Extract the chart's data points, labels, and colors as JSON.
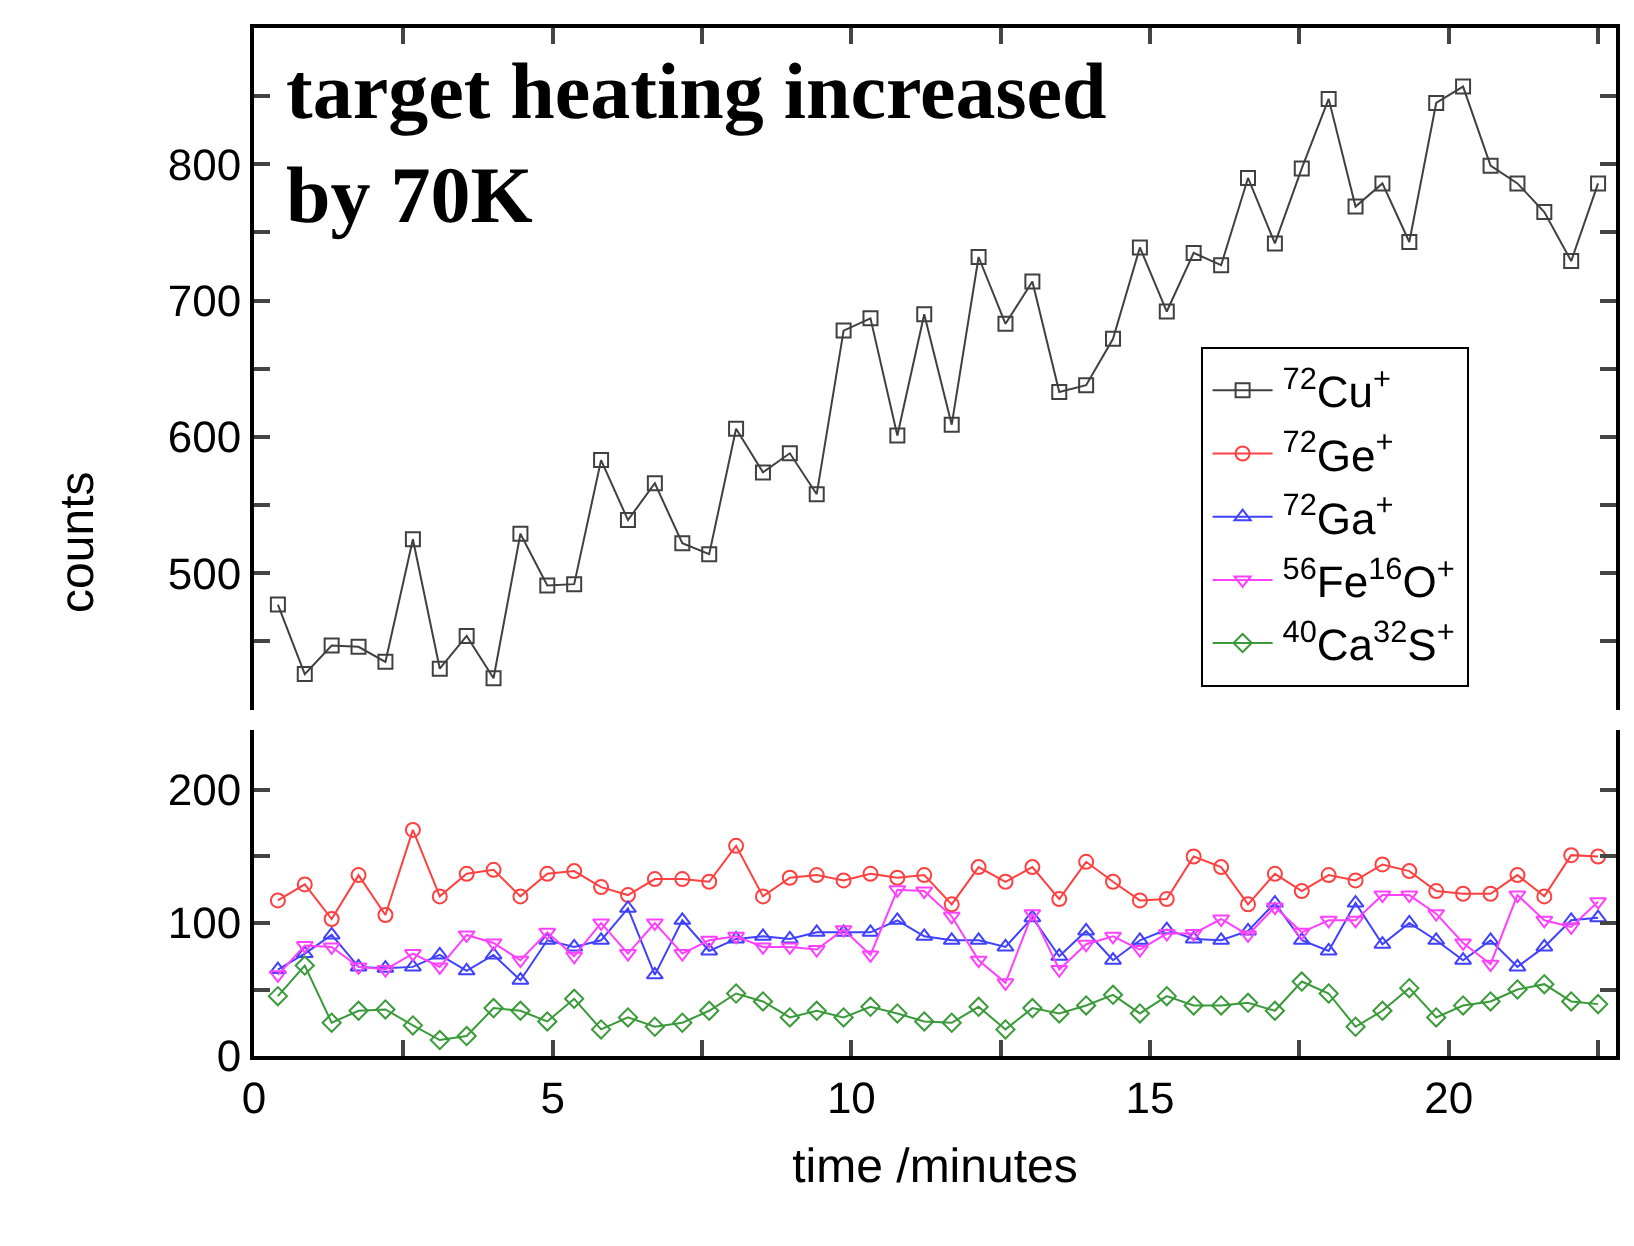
{
  "chart_data": [
    {
      "type": "line",
      "title": "target heating increased\nby 70K",
      "ylabel": "counts",
      "legend": "right",
      "tick_labels": "y",
      "x": [
        0.4,
        0.85,
        1.3,
        1.75,
        2.2,
        2.66,
        3.11,
        3.56,
        4.01,
        4.46,
        4.91,
        5.36,
        5.81,
        6.26,
        6.71,
        7.17,
        7.62,
        8.07,
        8.52,
        8.97,
        9.42,
        9.87,
        10.32,
        10.77,
        11.22,
        11.68,
        12.13,
        12.58,
        13.03,
        13.48,
        13.93,
        14.38,
        14.83,
        15.28,
        15.73,
        16.19,
        16.64,
        17.09,
        17.54,
        17.99,
        18.44,
        18.89,
        19.34,
        19.79,
        20.24,
        20.7,
        21.15,
        21.6,
        22.05,
        22.5
      ],
      "xlim": [
        0,
        22.8
      ],
      "xticks": [
        {
          "value": 0,
          "label": null
        },
        {
          "value": 2.5,
          "label": null
        },
        {
          "value": 5,
          "label": null
        },
        {
          "value": 7.5,
          "label": null
        },
        {
          "value": 10,
          "label": null
        },
        {
          "value": 12.5,
          "label": null
        },
        {
          "value": 15,
          "label": null
        },
        {
          "value": 17.5,
          "label": null
        },
        {
          "value": 20,
          "label": null
        },
        {
          "value": 22.5,
          "label": null
        }
      ],
      "ylim": [
        400,
        900
      ],
      "yticks": [
        {
          "value": 450,
          "label": null
        },
        500,
        {
          "value": 550,
          "label": null
        },
        600,
        {
          "value": 650,
          "label": null
        },
        700,
        {
          "value": 750,
          "label": null
        },
        800,
        {
          "value": 850,
          "label": null
        }
      ],
      "series": [
        {
          "name": "$^{72}$Cu$^{+}$",
          "color": "#404040",
          "marker": "square",
          "values": [
            477,
            426,
            447,
            446,
            435,
            525,
            430,
            454,
            423,
            529,
            491,
            492,
            583,
            539,
            566,
            522,
            514,
            606,
            574,
            588,
            558,
            678,
            687,
            601,
            690,
            609,
            732,
            683,
            714,
            633,
            638,
            672,
            739,
            692,
            735,
            726,
            790,
            742,
            797,
            848,
            769,
            786,
            743,
            845,
            857,
            799,
            786,
            765,
            729,
            786
          ]
        }
      ]
    },
    {
      "type": "line",
      "xlabel": "time /minutes",
      "legend": "right",
      "x": [
        0.4,
        0.85,
        1.3,
        1.75,
        2.2,
        2.66,
        3.11,
        3.56,
        4.01,
        4.46,
        4.91,
        5.36,
        5.81,
        6.26,
        6.71,
        7.17,
        7.62,
        8.07,
        8.52,
        8.97,
        9.42,
        9.87,
        10.32,
        10.77,
        11.22,
        11.68,
        12.13,
        12.58,
        13.03,
        13.48,
        13.93,
        14.38,
        14.83,
        15.28,
        15.73,
        16.19,
        16.64,
        17.09,
        17.54,
        17.99,
        18.44,
        18.89,
        19.34,
        19.79,
        20.24,
        20.7,
        21.15,
        21.6,
        22.05,
        22.5
      ],
      "xlim": [
        0,
        22.8
      ],
      "xticks": [
        0,
        {
          "value": 2.5,
          "label": null
        },
        5,
        {
          "value": 7.5,
          "label": null
        },
        10,
        {
          "value": 12.5,
          "label": null
        },
        15,
        {
          "value": 17.5,
          "label": null
        },
        20,
        {
          "value": 22.5,
          "label": null
        }
      ],
      "ylim": [
        0,
        245
      ],
      "yticks": [
        0,
        {
          "value": 50,
          "label": null
        },
        100,
        {
          "value": 150,
          "label": null
        },
        200
      ],
      "series": [
        {
          "name": "$^{72}$Ge$^{+}$",
          "color": "#ff4040",
          "marker": "circle",
          "values": [
            117,
            129,
            103,
            136,
            106,
            170,
            120,
            137,
            140,
            120,
            137,
            139,
            127,
            121,
            133,
            133,
            131,
            158,
            120,
            134,
            136,
            132,
            137,
            134,
            136,
            114,
            142,
            131,
            142,
            118,
            146,
            131,
            117,
            118,
            150,
            142,
            114,
            137,
            124,
            136,
            132,
            144,
            139,
            124,
            122,
            122,
            136,
            120,
            151,
            150
          ]
        },
        {
          "name": "$^{72}$Ga$^{+}$",
          "color": "#4040ff",
          "marker": "triangle",
          "values": [
            65,
            77,
            91,
            67,
            66,
            67,
            76,
            64,
            76,
            57,
            87,
            82,
            87,
            111,
            61,
            102,
            79,
            88,
            90,
            88,
            93,
            93,
            93,
            102,
            90,
            87,
            87,
            82,
            104,
            75,
            94,
            72,
            87,
            95,
            88,
            87,
            94,
            115,
            87,
            79,
            115,
            84,
            100,
            87,
            72,
            87,
            67,
            82,
            102,
            104
          ]
        },
        {
          "name": "$^{56}$Fe$^{16}$O$^{+}$",
          "color": "#ff40ff",
          "marker": "triangle-down",
          "values": [
            61,
            83,
            82,
            67,
            65,
            77,
            67,
            91,
            85,
            72,
            93,
            75,
            100,
            77,
            100,
            77,
            87,
            90,
            82,
            82,
            80,
            95,
            76,
            125,
            124,
            105,
            72,
            55,
            107,
            65,
            84,
            90,
            80,
            92,
            92,
            103,
            91,
            112,
            93,
            102,
            102,
            121,
            121,
            107,
            85,
            69,
            121,
            102,
            97,
            116
          ]
        },
        {
          "name": "$^{40}$Ca$^{32}$S$^{+}$",
          "color": "#3a9a3a",
          "marker": "diamond",
          "values": [
            45,
            68,
            25,
            34,
            35,
            23,
            12,
            15,
            36,
            34,
            26,
            43,
            20,
            29,
            22,
            25,
            34,
            47,
            41,
            29,
            34,
            29,
            37,
            32,
            26,
            25,
            37,
            20,
            36,
            32,
            38,
            46,
            32,
            45,
            38,
            38,
            40,
            34,
            56,
            47,
            22,
            34,
            51,
            29,
            38,
            41,
            50,
            54,
            41,
            39
          ]
        }
      ]
    }
  ]
}
